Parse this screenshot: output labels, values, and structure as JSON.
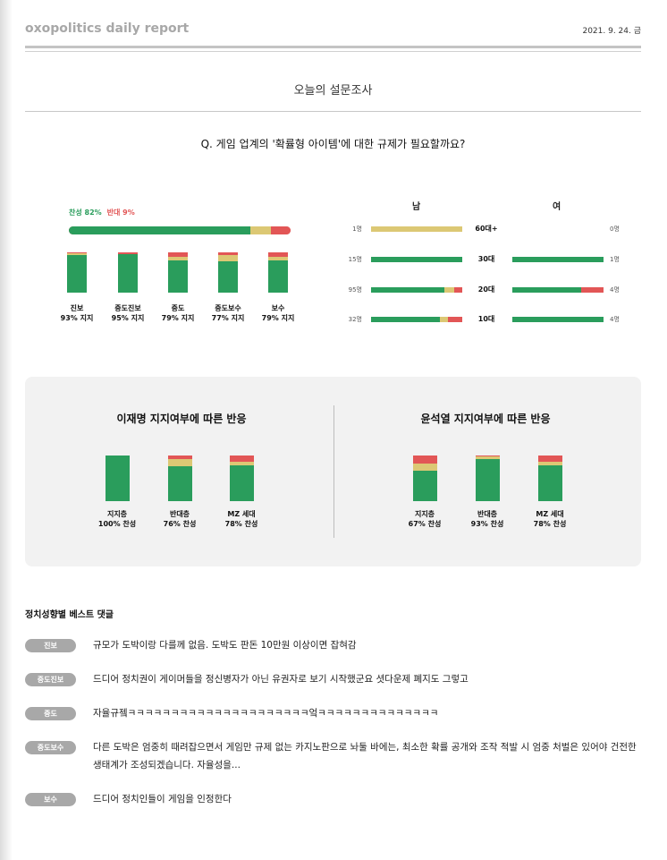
{
  "header": {
    "brand": "oxopolitics daily report",
    "date": "2021. 9. 24. 금"
  },
  "section_title": "오늘의 설문조사",
  "question": "Q. 게임 업계의 '확률형 아이템'에 대한 규제가 필요할까요?",
  "colors": {
    "agree": "#2a9d5c",
    "neutral": "#dcc874",
    "disagree": "#e25656"
  },
  "overall": {
    "agree_label": "찬성 82%",
    "disagree_label": "반대 9%",
    "agree": 82,
    "neutral": 9,
    "disagree": 9
  },
  "ideology": [
    {
      "name": "진보",
      "support": "93% 지지",
      "agree": 93,
      "neutral": 4,
      "disagree": 3
    },
    {
      "name": "중도진보",
      "support": "95% 지지",
      "agree": 95,
      "neutral": 0,
      "disagree": 5
    },
    {
      "name": "중도",
      "support": "79% 지지",
      "agree": 79,
      "neutral": 9,
      "disagree": 12
    },
    {
      "name": "중도보수",
      "support": "77% 지지",
      "agree": 77,
      "neutral": 16,
      "disagree": 7
    },
    {
      "name": "보수",
      "support": "79% 지지",
      "agree": 79,
      "neutral": 9,
      "disagree": 12
    }
  ],
  "gender": {
    "male_label": "남",
    "female_label": "여",
    "ages": [
      {
        "age": "60대+",
        "male_count": "1명",
        "female_count": "0명",
        "male": [
          0,
          100,
          0
        ],
        "female": [
          0,
          0,
          0
        ]
      },
      {
        "age": "30대",
        "male_count": "15명",
        "female_count": "1명",
        "male": [
          100,
          0,
          0
        ],
        "female": [
          100,
          0,
          0
        ]
      },
      {
        "age": "20대",
        "male_count": "95명",
        "female_count": "4명",
        "male": [
          80,
          11,
          9
        ],
        "female": [
          75,
          0,
          25
        ]
      },
      {
        "age": "10대",
        "male_count": "32명",
        "female_count": "4명",
        "male": [
          75,
          9,
          16
        ],
        "female": [
          100,
          0,
          0
        ]
      }
    ]
  },
  "panel": {
    "left_title": "이재명 지지여부에 따른 반응",
    "right_title": "윤석열 지지여부에 따른 반응",
    "left": [
      {
        "name": "지지층",
        "result": "100% 찬성",
        "agree": 100,
        "neutral": 0,
        "disagree": 0
      },
      {
        "name": "반대층",
        "result": "76% 찬성",
        "agree": 76,
        "neutral": 16,
        "disagree": 8
      },
      {
        "name": "MZ 세대",
        "result": "78% 찬성",
        "agree": 78,
        "neutral": 8,
        "disagree": 14
      }
    ],
    "right": [
      {
        "name": "지지층",
        "result": "67% 찬성",
        "agree": 67,
        "neutral": 16,
        "disagree": 17
      },
      {
        "name": "반대층",
        "result": "93% 찬성",
        "agree": 93,
        "neutral": 5,
        "disagree": 2
      },
      {
        "name": "MZ 세대",
        "result": "78% 찬성",
        "agree": 78,
        "neutral": 8,
        "disagree": 14
      }
    ]
  },
  "comments": {
    "title": "정치성향별 베스트 댓글",
    "items": [
      {
        "tag": "진보",
        "text": "규모가 도박이랑 다를께 없음. 도박도 판돈 10만원 이상이면 잡혀감"
      },
      {
        "tag": "중도진보",
        "text": "드디어 정치권이 게이머들을 정신병자가 아닌 유권자로 보기 시작했군요 셧다운제 폐지도 그렇고"
      },
      {
        "tag": "중도",
        "text": "자율규젴ㅋㅋㅋㅋㅋㅋㅋㅋㅋㅋㅋㅋㅋㅋㅋㅋㅋㅋㅋㅋㅋ엌ㅋㅋㅋㅋㅋㅋㅋㅋㅋㅋㅋㅋㅋㅋ"
      },
      {
        "tag": "중도보수",
        "text": "다른 도박은 엄중히 때려잡으면서 게임만 규제 없는 카지노판으로 놔둘 바에는, 최소한 확률 공개와 조작 적발 시 엄중 처벌은 있어야 건전한 생태계가 조성되겠습니다. 자율성을..."
      },
      {
        "tag": "보수",
        "text": "드디어 정치인들이 게임을 인정한다"
      }
    ]
  }
}
